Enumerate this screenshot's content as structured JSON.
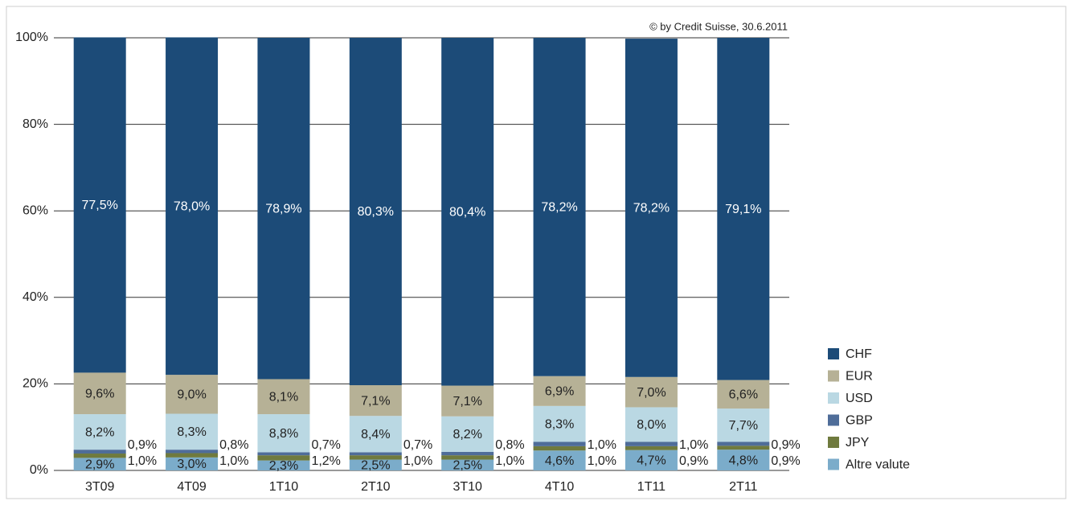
{
  "chart_data": {
    "type": "stacked_bar",
    "note": "© by Credit Suisse, 30.6.2011",
    "categories": [
      "3T09",
      "4T09",
      "1T10",
      "2T10",
      "3T10",
      "4T10",
      "1T11",
      "2T11"
    ],
    "series": [
      {
        "name": "Altre valute",
        "color": "#7bacca",
        "values": [
          2.9,
          3.0,
          2.3,
          2.5,
          2.5,
          4.6,
          4.7,
          4.8
        ],
        "value_labels": [
          "2,9%",
          "3,0%",
          "2,3%",
          "2,5%",
          "2,5%",
          "4,6%",
          "4,7%",
          "4,8%"
        ]
      },
      {
        "name": "JPY",
        "color": "#6f7a3e",
        "values": [
          1.0,
          1.0,
          1.2,
          1.0,
          1.0,
          1.0,
          0.9,
          0.9
        ],
        "value_labels": [
          "1,0%",
          "1,0%",
          "1,2%",
          "1,0%",
          "1,0%",
          "1,0%",
          "0,9%",
          "0,9%"
        ]
      },
      {
        "name": "GBP",
        "color": "#4f6d99",
        "values": [
          0.9,
          0.8,
          0.7,
          0.7,
          0.8,
          1.0,
          1.0,
          0.9
        ],
        "value_labels": [
          "0,9%",
          "0,8%",
          "0,7%",
          "0,7%",
          "0,8%",
          "1,0%",
          "1,0%",
          "0,9%"
        ]
      },
      {
        "name": "USD",
        "color": "#bad8e3",
        "values": [
          8.2,
          8.3,
          8.8,
          8.4,
          8.2,
          8.3,
          8.0,
          7.7
        ],
        "value_labels": [
          "8,2%",
          "8,3%",
          "8,8%",
          "8,4%",
          "8,2%",
          "8,3%",
          "8,0%",
          "7,7%"
        ]
      },
      {
        "name": "EUR",
        "color": "#b6b196",
        "values": [
          9.6,
          9.0,
          8.1,
          7.1,
          7.1,
          6.9,
          7.0,
          6.6
        ],
        "value_labels": [
          "9,6%",
          "9,0%",
          "8,1%",
          "7,1%",
          "7,1%",
          "6,9%",
          "7,0%",
          "6,6%"
        ]
      },
      {
        "name": "CHF",
        "color": "#1c4b78",
        "values": [
          77.5,
          78.0,
          78.9,
          80.3,
          80.4,
          78.2,
          78.2,
          79.1
        ],
        "value_labels": [
          "77,5%",
          "78,0%",
          "78,9%",
          "80,3%",
          "80,4%",
          "78,2%",
          "78,2%",
          "79,1%"
        ]
      }
    ],
    "ylim": [
      0,
      100
    ],
    "yticks": [
      {
        "value": 0,
        "label": "0%"
      },
      {
        "value": 20,
        "label": "20%"
      },
      {
        "value": 40,
        "label": "40%"
      },
      {
        "value": 60,
        "label": "60%"
      },
      {
        "value": 80,
        "label": "80%"
      },
      {
        "value": 100,
        "label": "100%"
      }
    ],
    "grid": true
  }
}
